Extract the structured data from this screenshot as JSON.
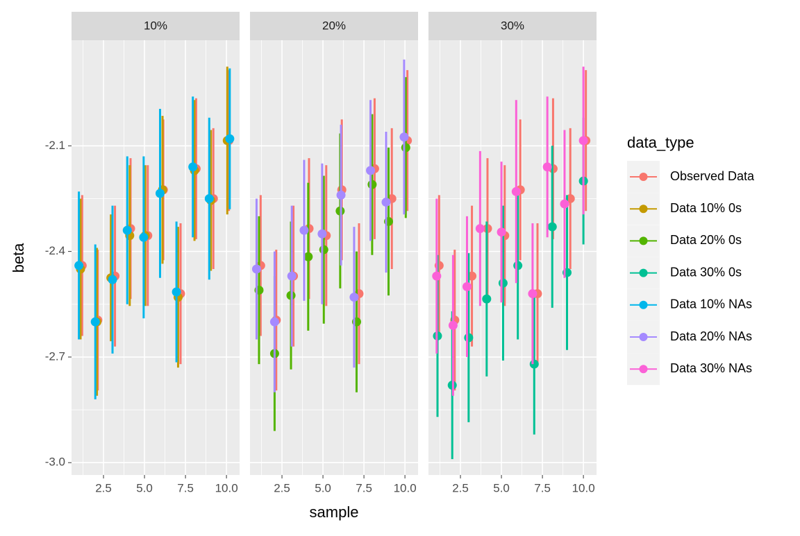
{
  "chart_data": {
    "type": "pointrange",
    "facets": [
      "10%",
      "20%",
      "30%"
    ],
    "xlabel": "sample",
    "ylabel": "beta",
    "legend_title": "data_type",
    "xlim": [
      0.55,
      10.8
    ],
    "xticks": [
      2.5,
      {
        "value": 5,
        "label": "5.0"
      },
      7.5,
      {
        "value": 10,
        "label": "10.0"
      }
    ],
    "ylim": [
      -3.035,
      -1.8
    ],
    "yticks": [
      -2.1,
      -2.4,
      -2.7,
      {
        "value": -3,
        "label": "-3.0"
      }
    ],
    "grid": true,
    "series": [
      {
        "name": "Observed Data",
        "color": "#F8766D",
        "facets": [
          0,
          1,
          2
        ],
        "x": [
          1.2,
          2.15,
          3.2,
          4.15,
          5.2,
          6.15,
          7.2,
          8.15,
          9.2,
          10.15
        ],
        "values": [
          -2.44,
          -2.595,
          -2.47,
          -2.335,
          -2.355,
          -2.225,
          -2.52,
          -2.165,
          -2.25,
          -2.085
        ],
        "errors": [
          0.2,
          0.2,
          0.2,
          0.2,
          0.2,
          0.2,
          0.2,
          0.2,
          0.2,
          0.2
        ]
      },
      {
        "name": "Data 10% 0s",
        "color": "#C49A00",
        "facets": [
          0
        ],
        "x": [
          1.1,
          2.1,
          2.95,
          4.1,
          5.05,
          6.1,
          7.05,
          8.05,
          9.05,
          10.05
        ],
        "values": [
          -2.45,
          -2.6,
          -2.475,
          -2.355,
          -2.355,
          -2.225,
          -2.53,
          -2.17,
          -2.255,
          -2.085
        ],
        "errors": [
          0.2,
          0.21,
          0.18,
          0.2,
          0.2,
          0.21,
          0.2,
          0.2,
          0.2,
          0.21
        ]
      },
      {
        "name": "Data 20% 0s",
        "color": "#53B400",
        "facets": [
          1
        ],
        "x": [
          1.1,
          2.05,
          3.05,
          4.1,
          5.05,
          6.05,
          7.05,
          8.0,
          9.0,
          10.05
        ],
        "values": [
          -2.51,
          -2.69,
          -2.525,
          -2.415,
          -2.395,
          -2.285,
          -2.6,
          -2.21,
          -2.315,
          -2.105
        ],
        "errors": [
          0.21,
          0.22,
          0.21,
          0.21,
          0.21,
          0.22,
          0.2,
          0.2,
          0.21,
          0.2
        ]
      },
      {
        "name": "Data 30% 0s",
        "color": "#00C094",
        "facets": [
          2
        ],
        "x": [
          1.1,
          2.0,
          3.0,
          4.1,
          5.1,
          6.0,
          7.0,
          8.1,
          9.0,
          10.0
        ],
        "values": [
          -2.64,
          -2.78,
          -2.645,
          -2.535,
          -2.49,
          -2.44,
          -2.72,
          -2.33,
          -2.46,
          -2.2
        ],
        "errors": [
          0.23,
          0.21,
          0.24,
          0.22,
          0.22,
          0.21,
          0.2,
          0.23,
          0.22,
          0.18
        ]
      },
      {
        "name": "Data 10% NAs",
        "color": "#00B6EB",
        "facets": [
          0
        ],
        "x": [
          1.0,
          2.0,
          3.05,
          3.95,
          4.95,
          5.95,
          6.95,
          7.95,
          8.95,
          10.2
        ],
        "values": [
          -2.44,
          -2.6,
          -2.48,
          -2.34,
          -2.36,
          -2.235,
          -2.515,
          -2.16,
          -2.25,
          -2.08
        ],
        "errors": [
          0.21,
          0.22,
          0.21,
          0.21,
          0.23,
          0.24,
          0.2,
          0.2,
          0.23,
          0.2
        ]
      },
      {
        "name": "Data 20% NAs",
        "color": "#A58AFF",
        "facets": [
          1
        ],
        "x": [
          0.95,
          2.05,
          3.1,
          3.85,
          4.95,
          6.1,
          6.9,
          7.9,
          8.85,
          9.95
        ],
        "values": [
          -2.45,
          -2.6,
          -2.47,
          -2.34,
          -2.35,
          -2.24,
          -2.53,
          -2.17,
          -2.26,
          -2.075
        ],
        "errors": [
          0.2,
          0.2,
          0.2,
          0.2,
          0.2,
          0.2,
          0.2,
          0.2,
          0.2,
          0.22
        ]
      },
      {
        "name": "Data 30% NAs",
        "color": "#FB61D7",
        "facets": [
          2
        ],
        "x": [
          1.05,
          2.05,
          2.9,
          3.7,
          5.0,
          5.9,
          6.9,
          7.8,
          8.85,
          10.0
        ],
        "values": [
          -2.47,
          -2.61,
          -2.5,
          -2.335,
          -2.345,
          -2.23,
          -2.52,
          -2.16,
          -2.265,
          -2.085
        ],
        "errors": [
          0.22,
          0.2,
          0.2,
          0.22,
          0.2,
          0.26,
          0.2,
          0.2,
          0.21,
          0.21
        ]
      }
    ]
  }
}
